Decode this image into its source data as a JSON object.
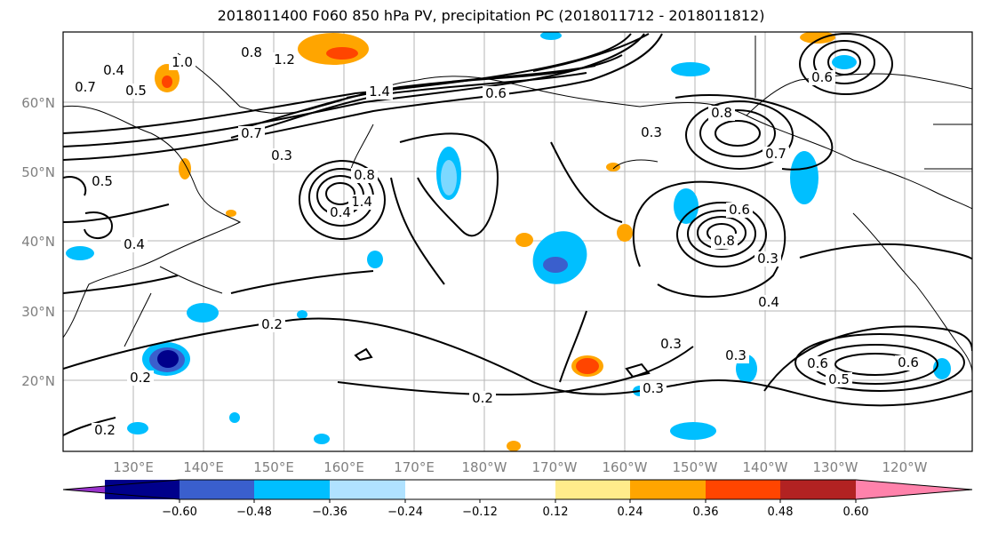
{
  "title": "2018011400 F060 850 hPa PV, precipitation PC (2018011712 - 2018011812)",
  "lat_ticks": [
    "60°N",
    "50°N",
    "40°N",
    "30°N",
    "20°N"
  ],
  "lon_ticks": [
    "130°E",
    "140°E",
    "150°E",
    "160°E",
    "170°E",
    "180°W",
    "170°W",
    "160°W",
    "150°W",
    "140°W",
    "130°W",
    "120°W"
  ],
  "colorbar": {
    "tick_labels": [
      "−0.60",
      "−0.48",
      "−0.36",
      "−0.24",
      "−0.12",
      "0.12",
      "0.24",
      "0.36",
      "0.48",
      "0.60"
    ],
    "colors": [
      "#9932cc",
      "#00008b",
      "#3a5fcd",
      "#00bfff",
      "#b0e2ff",
      "#ffffff",
      "#ffec8b",
      "#ffa500",
      "#ff4500",
      "#b22222",
      "#ff82ab"
    ]
  },
  "contour_labels": [
    "0.8",
    "1.0",
    "0.4",
    "0.5",
    "0.7",
    "1.2",
    "0.3",
    "1.4",
    "0.6",
    "0.8",
    "0.3",
    "0.7",
    "0.5",
    "0.4",
    "0.7",
    "1.4",
    "0.4",
    "0.6",
    "0.8",
    "0.3",
    "0.4",
    "0.3",
    "0.2",
    "0.3",
    "0.6",
    "0.5",
    "0.6",
    "0.2",
    "0.3",
    "0.2",
    "0.2",
    "0.8",
    "0.6"
  ]
}
